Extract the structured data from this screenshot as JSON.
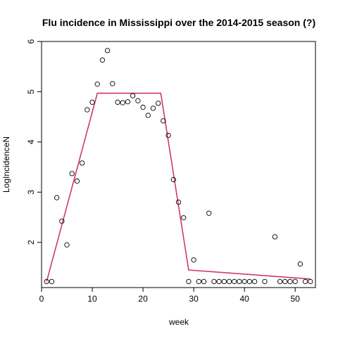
{
  "chart_data": {
    "type": "scatter",
    "title": "Flu incidence in Mississippi over the 2014-2015 season (?)",
    "xlabel": "week",
    "ylabel": "LogIncidenceN",
    "xlim": [
      0,
      54
    ],
    "ylim": [
      1.1,
      6.0
    ],
    "x_ticks": [
      0,
      10,
      20,
      30,
      40,
      50
    ],
    "y_ticks": [
      2,
      3,
      4,
      5,
      6
    ],
    "grid": false,
    "legend": "none",
    "series": [
      {
        "kind": "points",
        "marker": "open-circle",
        "color": "#000000",
        "x": [
          1,
          2,
          3,
          4,
          5,
          6,
          7,
          8,
          9,
          10,
          11,
          12,
          13,
          14,
          15,
          16,
          17,
          18,
          19,
          20,
          21,
          22,
          23,
          24,
          25,
          26,
          27,
          28,
          29,
          30,
          31,
          32,
          33,
          34,
          35,
          36,
          37,
          38,
          39,
          40,
          41,
          42,
          44,
          46,
          47,
          48,
          49,
          50,
          51,
          52,
          53
        ],
        "y": [
          1.22,
          1.22,
          2.89,
          2.42,
          1.95,
          3.37,
          3.22,
          3.58,
          4.64,
          4.79,
          5.15,
          5.63,
          5.82,
          5.16,
          4.79,
          4.78,
          4.8,
          4.92,
          4.82,
          4.69,
          4.53,
          4.67,
          4.77,
          4.42,
          4.13,
          3.25,
          2.8,
          2.49,
          1.22,
          1.65,
          1.22,
          1.22,
          2.58,
          1.22,
          1.22,
          1.22,
          1.22,
          1.22,
          1.22,
          1.22,
          1.22,
          1.22,
          1.22,
          2.11,
          1.22,
          1.22,
          1.22,
          1.22,
          1.57,
          1.22,
          1.22
        ]
      },
      {
        "kind": "line",
        "color": "#d03a60",
        "x": [
          1,
          11,
          23.5,
          29,
          53
        ],
        "y": [
          1.22,
          4.97,
          4.97,
          1.45,
          1.27
        ]
      }
    ]
  }
}
